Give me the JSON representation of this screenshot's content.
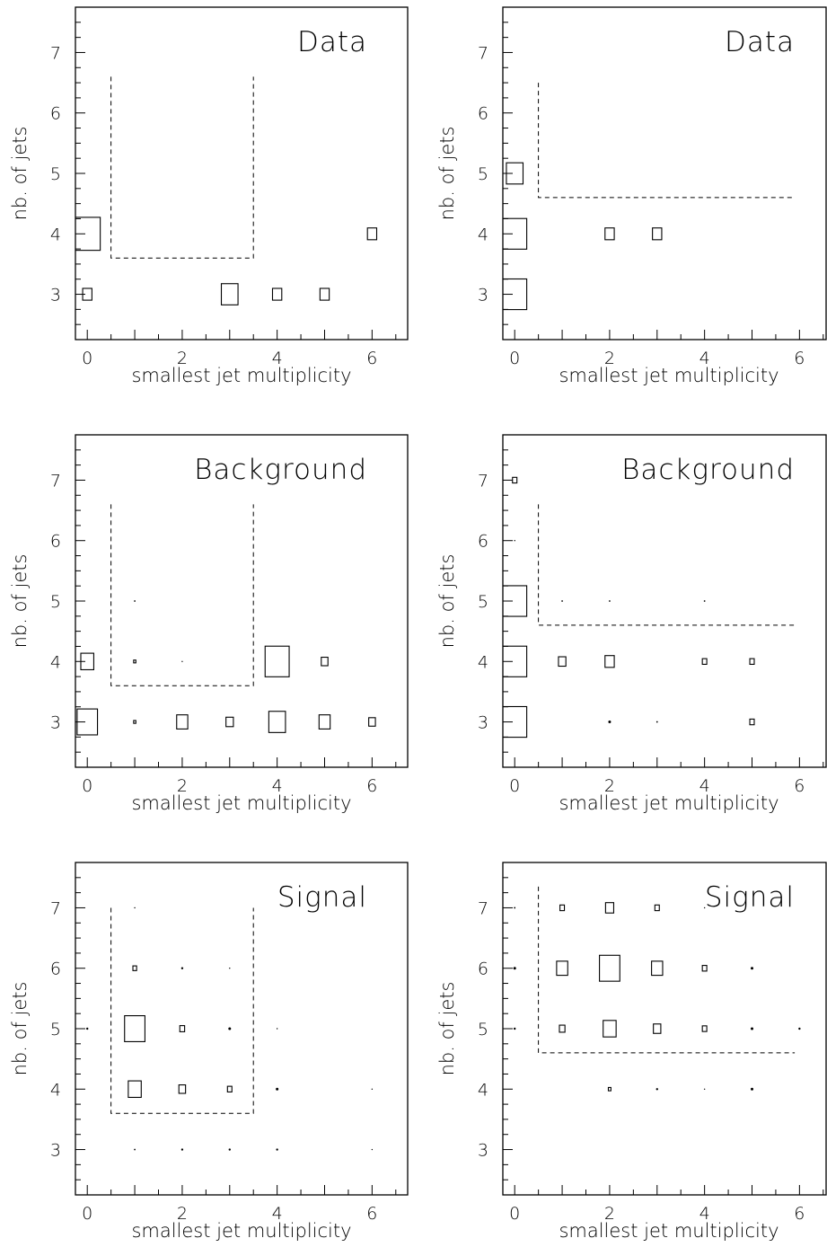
{
  "chart_data": [
    {
      "type": "box",
      "title": "Data",
      "xlabel": "smallest jet multiplicity",
      "ylabel": "nb. of jets",
      "xlim": [
        -0.25,
        6.75
      ],
      "ylim": [
        2.25,
        7.75
      ],
      "xticks": [
        "0",
        "2",
        "4",
        "6"
      ],
      "yticks": [
        "3",
        "4",
        "5",
        "6",
        "7"
      ],
      "cut_region": [
        [
          0.5,
          6.6
        ],
        [
          0.5,
          3.6
        ],
        [
          3.5,
          3.6
        ],
        [
          3.5,
          6.6
        ]
      ],
      "points": [
        {
          "x": 0,
          "y": 3,
          "size": 0.25
        },
        {
          "x": 0,
          "y": 4,
          "size": 0.7
        },
        {
          "x": 3,
          "y": 3,
          "size": 0.45
        },
        {
          "x": 4,
          "y": 3,
          "size": 0.25
        },
        {
          "x": 5,
          "y": 3,
          "size": 0.25
        },
        {
          "x": 6,
          "y": 4,
          "size": 0.25
        }
      ]
    },
    {
      "type": "box",
      "title": "Data",
      "xlabel": "smallest jet multiplicity",
      "ylabel": "nb. of jets",
      "xlim": [
        -0.25,
        6.75
      ],
      "ylim": [
        2.25,
        7.75
      ],
      "xticks": [
        "0",
        "2",
        "4",
        "6"
      ],
      "yticks": [
        "3",
        "4",
        "5",
        "6",
        "7"
      ],
      "cut_region": [
        [
          0.5,
          6.5
        ],
        [
          0.5,
          4.6
        ],
        [
          5.9,
          4.6
        ]
      ],
      "points": [
        {
          "x": 0,
          "y": 3,
          "size": 0.65
        },
        {
          "x": 0,
          "y": 4,
          "size": 0.65
        },
        {
          "x": 0,
          "y": 5,
          "size": 0.45
        },
        {
          "x": 2,
          "y": 4,
          "size": 0.25
        },
        {
          "x": 3,
          "y": 4,
          "size": 0.25
        }
      ]
    },
    {
      "type": "box",
      "title": "Background",
      "xlabel": "smallest jet multiplicity",
      "ylabel": "nb. of jets",
      "xlim": [
        -0.25,
        6.75
      ],
      "ylim": [
        2.25,
        7.75
      ],
      "xticks": [
        "0",
        "2",
        "4",
        "6"
      ],
      "yticks": [
        "3",
        "4",
        "5",
        "6",
        "7"
      ],
      "cut_region": [
        [
          0.5,
          6.6
        ],
        [
          0.5,
          3.6
        ],
        [
          3.5,
          3.6
        ],
        [
          3.5,
          6.6
        ]
      ],
      "points": [
        {
          "x": 0,
          "y": 3,
          "size": 0.55
        },
        {
          "x": 0,
          "y": 4,
          "size": 0.35
        },
        {
          "x": 1,
          "y": 3,
          "size": 0.06
        },
        {
          "x": 1,
          "y": 4,
          "size": 0.06
        },
        {
          "x": 1,
          "y": 5,
          "size": 0.03
        },
        {
          "x": 2,
          "y": 3,
          "size": 0.3
        },
        {
          "x": 2,
          "y": 4,
          "size": 0.02
        },
        {
          "x": 3,
          "y": 3,
          "size": 0.2
        },
        {
          "x": 4,
          "y": 3,
          "size": 0.45
        },
        {
          "x": 4,
          "y": 4,
          "size": 0.65
        },
        {
          "x": 5,
          "y": 3,
          "size": 0.3
        },
        {
          "x": 5,
          "y": 4,
          "size": 0.18
        },
        {
          "x": 6,
          "y": 3,
          "size": 0.18
        }
      ]
    },
    {
      "type": "box",
      "title": "Background",
      "xlabel": "smallest jet multiplicity",
      "ylabel": "nb. of jets",
      "xlim": [
        -0.25,
        6.75
      ],
      "ylim": [
        2.25,
        7.75
      ],
      "xticks": [
        "0",
        "2",
        "4",
        "6"
      ],
      "yticks": [
        "3",
        "4",
        "5",
        "6",
        "7"
      ],
      "cut_region": [
        [
          0.5,
          6.6
        ],
        [
          0.5,
          4.6
        ],
        [
          5.9,
          4.6
        ]
      ],
      "points": [
        {
          "x": 0,
          "y": 3,
          "size": 0.65
        },
        {
          "x": 0,
          "y": 4,
          "size": 0.65
        },
        {
          "x": 0,
          "y": 5,
          "size": 0.65
        },
        {
          "x": 0,
          "y": 6,
          "size": 0.02
        },
        {
          "x": 0,
          "y": 7,
          "size": 0.12
        },
        {
          "x": 1,
          "y": 4,
          "size": 0.2
        },
        {
          "x": 1,
          "y": 5,
          "size": 0.03
        },
        {
          "x": 2,
          "y": 3,
          "size": 0.05
        },
        {
          "x": 2,
          "y": 4,
          "size": 0.25
        },
        {
          "x": 2,
          "y": 5,
          "size": 0.03
        },
        {
          "x": 3,
          "y": 3,
          "size": 0.03
        },
        {
          "x": 4,
          "y": 4,
          "size": 0.12
        },
        {
          "x": 4,
          "y": 5,
          "size": 0.03
        },
        {
          "x": 5,
          "y": 3,
          "size": 0.12
        },
        {
          "x": 5,
          "y": 4,
          "size": 0.12
        }
      ]
    },
    {
      "type": "box",
      "title": "Signal",
      "xlabel": "smallest jet multiplicity",
      "ylabel": "nb. of jets",
      "xlim": [
        -0.25,
        6.75
      ],
      "ylim": [
        2.25,
        7.75
      ],
      "xticks": [
        "0",
        "2",
        "4",
        "6"
      ],
      "yticks": [
        "3",
        "4",
        "5",
        "6",
        "7"
      ],
      "cut_region": [
        [
          0.5,
          7.0
        ],
        [
          0.5,
          3.6
        ],
        [
          3.5,
          3.6
        ],
        [
          3.5,
          7.0
        ]
      ],
      "points": [
        {
          "x": 0,
          "y": 5,
          "size": 0.04
        },
        {
          "x": 1,
          "y": 3,
          "size": 0.03
        },
        {
          "x": 1,
          "y": 4,
          "size": 0.35
        },
        {
          "x": 1,
          "y": 5,
          "size": 0.55
        },
        {
          "x": 1,
          "y": 6,
          "size": 0.1
        },
        {
          "x": 1,
          "y": 7,
          "size": 0.02
        },
        {
          "x": 2,
          "y": 3,
          "size": 0.04
        },
        {
          "x": 2,
          "y": 4,
          "size": 0.18
        },
        {
          "x": 2,
          "y": 5,
          "size": 0.13
        },
        {
          "x": 2,
          "y": 6,
          "size": 0.04
        },
        {
          "x": 3,
          "y": 3,
          "size": 0.04
        },
        {
          "x": 3,
          "y": 4,
          "size": 0.12
        },
        {
          "x": 3,
          "y": 5,
          "size": 0.05
        },
        {
          "x": 3,
          "y": 6,
          "size": 0.02
        },
        {
          "x": 4,
          "y": 3,
          "size": 0.04
        },
        {
          "x": 4,
          "y": 4,
          "size": 0.05
        },
        {
          "x": 4,
          "y": 5,
          "size": 0.02
        },
        {
          "x": 6,
          "y": 3,
          "size": 0.02
        },
        {
          "x": 6,
          "y": 4,
          "size": 0.01
        }
      ]
    },
    {
      "type": "box",
      "title": "Signal",
      "xlabel": "smallest jet multiplicity",
      "ylabel": "nb. of jets",
      "xlim": [
        -0.25,
        6.75
      ],
      "ylim": [
        2.25,
        7.75
      ],
      "xticks": [
        "0",
        "2",
        "4",
        "6"
      ],
      "yticks": [
        "3",
        "4",
        "5",
        "6",
        "7"
      ],
      "cut_region": [
        [
          0.5,
          7.35
        ],
        [
          0.5,
          4.6
        ],
        [
          5.9,
          4.6
        ]
      ],
      "points": [
        {
          "x": 0,
          "y": 5,
          "size": 0.04
        },
        {
          "x": 0,
          "y": 6,
          "size": 0.05
        },
        {
          "x": 0,
          "y": 7,
          "size": 0.03
        },
        {
          "x": 1,
          "y": 5,
          "size": 0.15
        },
        {
          "x": 1,
          "y": 6,
          "size": 0.3
        },
        {
          "x": 1,
          "y": 7,
          "size": 0.12
        },
        {
          "x": 2,
          "y": 4,
          "size": 0.07
        },
        {
          "x": 2,
          "y": 5,
          "size": 0.35
        },
        {
          "x": 2,
          "y": 6,
          "size": 0.55
        },
        {
          "x": 2,
          "y": 7,
          "size": 0.22
        },
        {
          "x": 3,
          "y": 4,
          "size": 0.04
        },
        {
          "x": 3,
          "y": 5,
          "size": 0.2
        },
        {
          "x": 3,
          "y": 6,
          "size": 0.3
        },
        {
          "x": 3,
          "y": 7,
          "size": 0.12
        },
        {
          "x": 4,
          "y": 4,
          "size": 0.02
        },
        {
          "x": 4,
          "y": 5,
          "size": 0.12
        },
        {
          "x": 4,
          "y": 6,
          "size": 0.12
        },
        {
          "x": 4,
          "y": 7,
          "size": 0.02
        },
        {
          "x": 5,
          "y": 4,
          "size": 0.05
        },
        {
          "x": 5,
          "y": 5,
          "size": 0.05
        },
        {
          "x": 5,
          "y": 6,
          "size": 0.05
        },
        {
          "x": 6,
          "y": 5,
          "size": 0.04
        }
      ]
    }
  ]
}
